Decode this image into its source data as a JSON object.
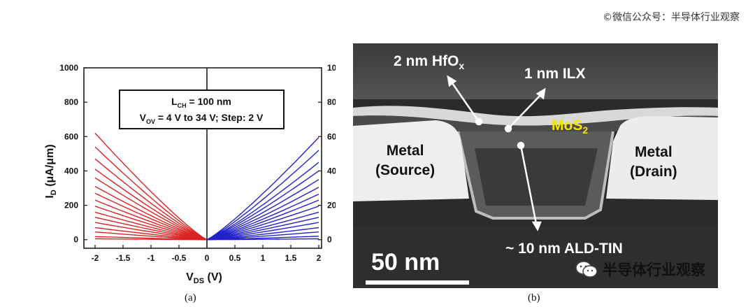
{
  "watermark_top": "©微信公众号：半导体行业观察",
  "watermark_bottom": "半导体行业观察",
  "caption_a": "(a)",
  "caption_b": "(b)",
  "chart_data": {
    "type": "line",
    "xlabel": "V",
    "xlabel_sub": "DS",
    "xlabel_unit": " (V)",
    "ylabel": "I",
    "ylabel_sub": "D",
    "ylabel_unit": " (μA/μm)",
    "xlim": [
      -2.2,
      2.05
    ],
    "ylim": [
      -50,
      1000
    ],
    "x_ticks": [
      -2,
      -1.5,
      -1,
      -0.5,
      0,
      0.5,
      1,
      1.5,
      2
    ],
    "x_tick_labels": [
      "-2",
      "-1.5",
      "-1",
      "-0.5",
      "0",
      "0.5",
      "1",
      "1.5",
      "2"
    ],
    "y_ticks": [
      0,
      200,
      400,
      600,
      800,
      1000
    ],
    "y_tick_labels": [
      "0",
      "200",
      "400",
      "600",
      "800",
      "1000"
    ],
    "annotation": {
      "line1": "L",
      "line1_sub": "CH",
      "line1_rest": " = 100 nm",
      "line2": "V",
      "line2_sub": "OV",
      "line2_rest": " = 4 V to 34 V; Step: 2 V"
    },
    "negative_branch_color": "#dd2222",
    "positive_branch_color": "#2222cc",
    "curve_count": 16,
    "negative_branch_end_values": [
      5,
      18,
      45,
      70,
      100,
      130,
      160,
      195,
      230,
      270,
      310,
      360,
      410,
      470,
      540,
      620
    ],
    "positive_branch_end_values": [
      5,
      20,
      45,
      70,
      100,
      130,
      160,
      195,
      230,
      265,
      305,
      350,
      400,
      450,
      520,
      595
    ]
  },
  "sem_image": {
    "labels": {
      "hfo": "2 nm HfO",
      "hfo_sub": "x",
      "ilx": "1 nm ILX",
      "mos2": "MoS",
      "mos2_sub": "2",
      "metal_source_1": "Metal",
      "metal_source_2": "(Source)",
      "metal_drain_1": "Metal",
      "metal_drain_2": "(Drain)",
      "tin": "~ 10 nm ALD-TIN",
      "scale_bar": "50 nm"
    },
    "mos2_color": "#f2e600"
  }
}
